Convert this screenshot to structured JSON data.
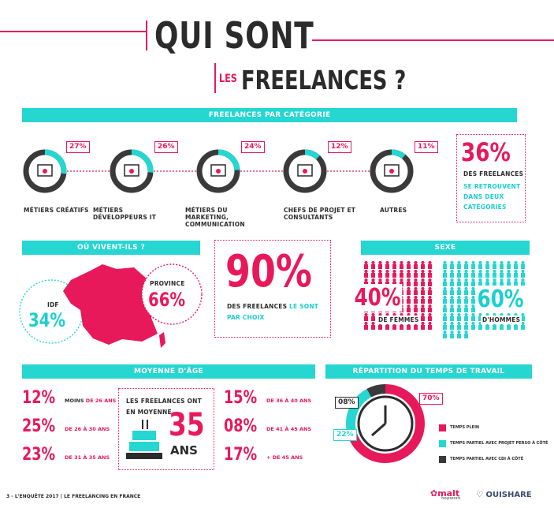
{
  "header": {
    "title": "QUI SONT",
    "subtitle_prefix": "LES",
    "subtitle": "FREELANCES ?"
  },
  "categories": {
    "bar_label": "FREELANCES PAR CATÉGORIE",
    "items": [
      {
        "label": "MÉTIERS CRÉATIFS",
        "pct": "27%",
        "value": 27,
        "icon": "creative-tools-icon"
      },
      {
        "label": "MÉTIERS DÉVELOPPEURS IT",
        "pct": "26%",
        "value": 26,
        "icon": "code-window-icon"
      },
      {
        "label": "MÉTIERS DU MARKETING, COMMUNICATION",
        "pct": "24%",
        "value": 24,
        "icon": "bar-chart-icon"
      },
      {
        "label": "CHEFS DE PROJET ET CONSULTANTS",
        "pct": "12%",
        "value": 12,
        "icon": "calendar-icon"
      },
      {
        "label": "AUTRES",
        "pct": "11%",
        "value": 11,
        "icon": "ellipsis-icon"
      }
    ],
    "note": {
      "pct": "36%",
      "line1": "DES FREELANCES",
      "line2": "SE RETROUVENT",
      "line3": "DANS DEUX",
      "line4": "CATÉGORIES"
    }
  },
  "location": {
    "bar_label": "OÙ VIVENT-ILS ?",
    "idf_label": "IDF",
    "idf_pct": "34%",
    "province_label": "PROVINCE",
    "province_pct": "66%"
  },
  "choice": {
    "pct": "90%",
    "text1": "DES FREELANCES",
    "text2": "LE SONT",
    "text3": "PAR CHOIX"
  },
  "sexe": {
    "bar_label": "SEXE",
    "women_pct": "40%",
    "women_label": "DE FEMMES",
    "men_pct": "60%",
    "men_label": "D'HOMMES"
  },
  "age": {
    "bar_label": "MOYENNE D'ÂGE",
    "left": [
      {
        "pct": "12%",
        "pre": "MOINS",
        "range": "DE 26 ANS"
      },
      {
        "pct": "25%",
        "pre": "",
        "range": "DE 26 À 30 ANS"
      },
      {
        "pct": "23%",
        "pre": "",
        "range": "DE 31 À 35 ANS"
      }
    ],
    "right": [
      {
        "pct": "15%",
        "range": "DE 36 À 40 ANS"
      },
      {
        "pct": "08%",
        "range": "DE 41 À 45 ANS"
      },
      {
        "pct": "17%",
        "range": "+ DE 45 ANS"
      }
    ],
    "center_line1": "LES FREELANCES ONT",
    "center_line2": "EN MOYENNE",
    "center_value": "35",
    "center_unit": "ANS"
  },
  "work_time": {
    "bar_label": "RÉPARTITION DU TEMPS DE TRAVAIL",
    "segments": [
      {
        "label": "TEMPS PLEIN",
        "pct": "70%",
        "value": 70,
        "color": "#e8195a"
      },
      {
        "label": "TEMPS PARTIEL AVEC PROJET PERSO À CÔTÉ",
        "pct": "22%",
        "value": 22,
        "color": "#25d6d1"
      },
      {
        "label": "TEMPS PARTIEL AVEC CDI À CÔTÉ",
        "pct": "08%",
        "value": 8,
        "color": "#3a3a3a"
      }
    ]
  },
  "footer": {
    "page": "3 - L'ENQUÊTE 2017",
    "section": "LE FREELANCING EN FRANCE",
    "logo_malt": "malt",
    "logo_malt_sub": "hopwork",
    "logo_ouishare": "OUISHARE"
  }
}
